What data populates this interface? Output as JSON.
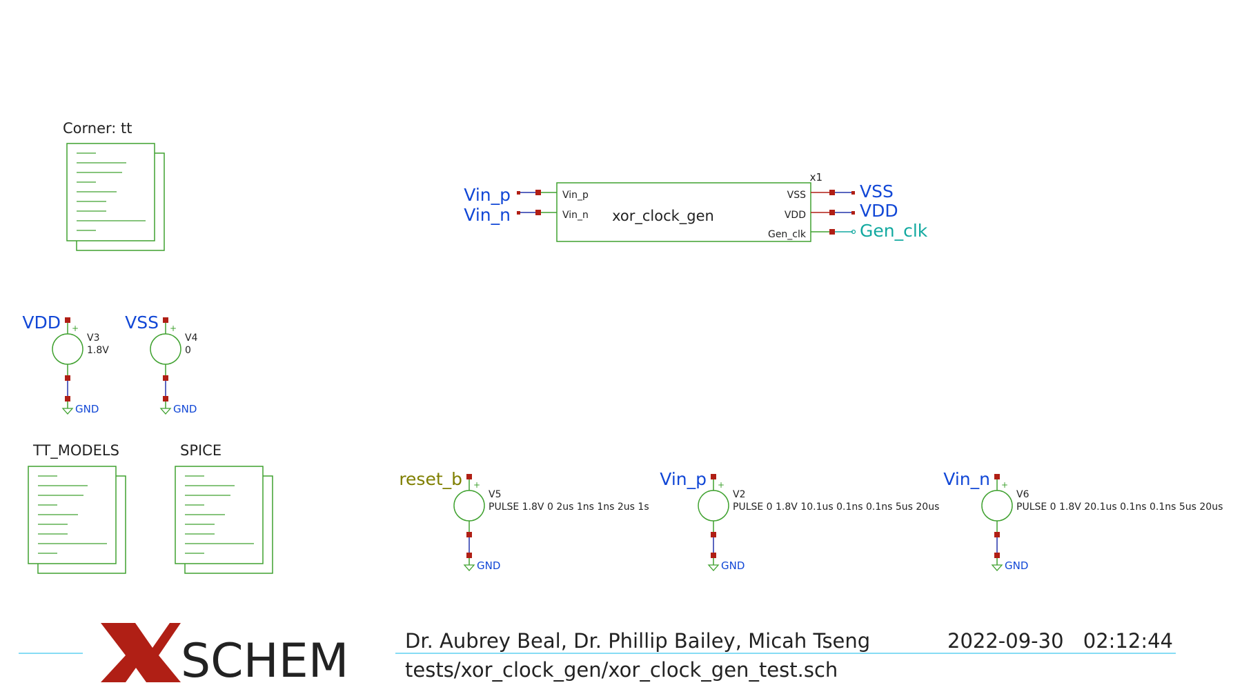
{
  "colors": {
    "symbol": "#3fa12f",
    "wire": "#2233aa",
    "pin": "#b01f15",
    "label": "#1147d6",
    "clock_label": "#12a9a0",
    "reset_label": "#7f7f00",
    "title_line": "#5fd0f0",
    "logo_x": "#b01f15",
    "text": "#222222"
  },
  "corner": {
    "label": "Corner: tt"
  },
  "block": {
    "instance": "x1",
    "name": "xor_clock_gen",
    "left_pins": [
      "Vin_p",
      "Vin_n"
    ],
    "right_pins": [
      "VSS",
      "VDD",
      "Gen_clk"
    ],
    "left_nets": [
      "Vin_p",
      "Vin_n"
    ],
    "right_nets": [
      "VSS",
      "VDD",
      "Gen_clk"
    ]
  },
  "supplies": [
    {
      "net": "VDD",
      "name": "V3",
      "value": "1.8V",
      "gnd": "GND"
    },
    {
      "net": "VSS",
      "name": "V4",
      "value": "0",
      "gnd": "GND"
    }
  ],
  "code_blocks": [
    {
      "label": "TT_MODELS"
    },
    {
      "label": "SPICE"
    }
  ],
  "pulse_sources": [
    {
      "net": "reset_b",
      "name": "V5",
      "value": "PULSE 1.8V 0 2us 1ns 1ns 2us 1s",
      "gnd": "GND"
    },
    {
      "net": "Vin_p",
      "name": "V2",
      "value": "PULSE 0 1.8V 10.1us 0.1ns 0.1ns 5us 20us",
      "gnd": "GND"
    },
    {
      "net": "Vin_n",
      "name": "V6",
      "value": "PULSE 0 1.8V 20.1us 0.1ns 0.1ns 5us 20us",
      "gnd": "GND"
    }
  ],
  "title_block": {
    "logo_text": "SCHEM",
    "authors": "Dr. Aubrey Beal, Dr. Phillip Bailey, Micah Tseng",
    "date": "2022-09-30",
    "time": "02:12:44",
    "path": "tests/xor_clock_gen/xor_clock_gen_test.sch"
  }
}
